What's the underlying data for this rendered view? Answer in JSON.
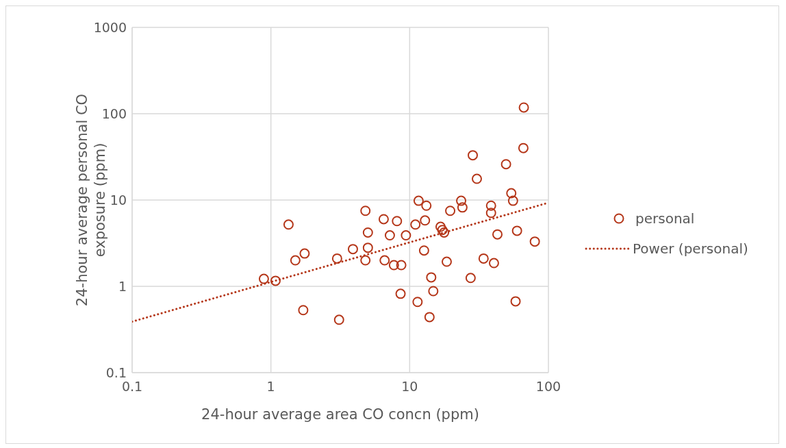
{
  "chart_data": {
    "type": "scatter",
    "xlabel": "24-hour average area CO concn (ppm)",
    "ylabel": "24-hour average personal CO exposure (ppm)",
    "log": "xy",
    "grid": true,
    "legend": "right",
    "marker": "circle",
    "xlim": [
      0.1,
      100
    ],
    "xticks": [
      0.1,
      1,
      10,
      100
    ],
    "ylim": [
      0.1,
      1000
    ],
    "yticks": [
      0.1,
      1,
      10,
      100,
      1000
    ],
    "series": [
      {
        "name": "personal",
        "color": "#b5371a",
        "x": [
          0.89,
          1.08,
          1.34,
          1.5,
          1.75,
          1.71,
          3.0,
          3.1,
          3.9,
          4.8,
          4.8,
          5.0,
          5.0,
          6.5,
          6.6,
          7.2,
          7.7,
          8.1,
          8.7,
          8.6,
          9.4,
          66.5,
          66,
          28.5,
          49.5,
          30.5,
          54,
          55.6,
          11.6,
          13.2,
          23.5,
          24,
          38.6,
          38.6,
          19.6,
          11.0,
          12.9,
          16.7,
          17.2,
          17.7,
          42.9,
          59.4,
          79.8,
          12.7,
          18.5,
          34.1,
          40.5,
          14.3,
          27.5,
          14.8,
          11.4,
          58,
          13.9
        ],
        "values": [
          1.22,
          1.16,
          5.2,
          2.0,
          2.4,
          0.53,
          2.1,
          0.41,
          2.7,
          7.5,
          2.0,
          2.8,
          4.2,
          6.0,
          2.0,
          3.9,
          1.76,
          5.7,
          1.76,
          0.82,
          3.9,
          118,
          40,
          33,
          26,
          17.6,
          12,
          9.8,
          9.8,
          8.6,
          9.8,
          8.2,
          8.6,
          7.1,
          7.5,
          5.2,
          5.8,
          4.9,
          4.5,
          4.2,
          4.0,
          4.4,
          3.3,
          2.6,
          1.93,
          2.1,
          1.86,
          1.27,
          1.25,
          0.88,
          0.66,
          0.67,
          0.44
        ]
      },
      {
        "name": "Power (personal)",
        "type": "line",
        "color": "#b5371a",
        "line_style": "dotted",
        "marker": "none",
        "x": [
          0.1,
          100
        ],
        "values": [
          0.39,
          9.3
        ]
      }
    ]
  }
}
